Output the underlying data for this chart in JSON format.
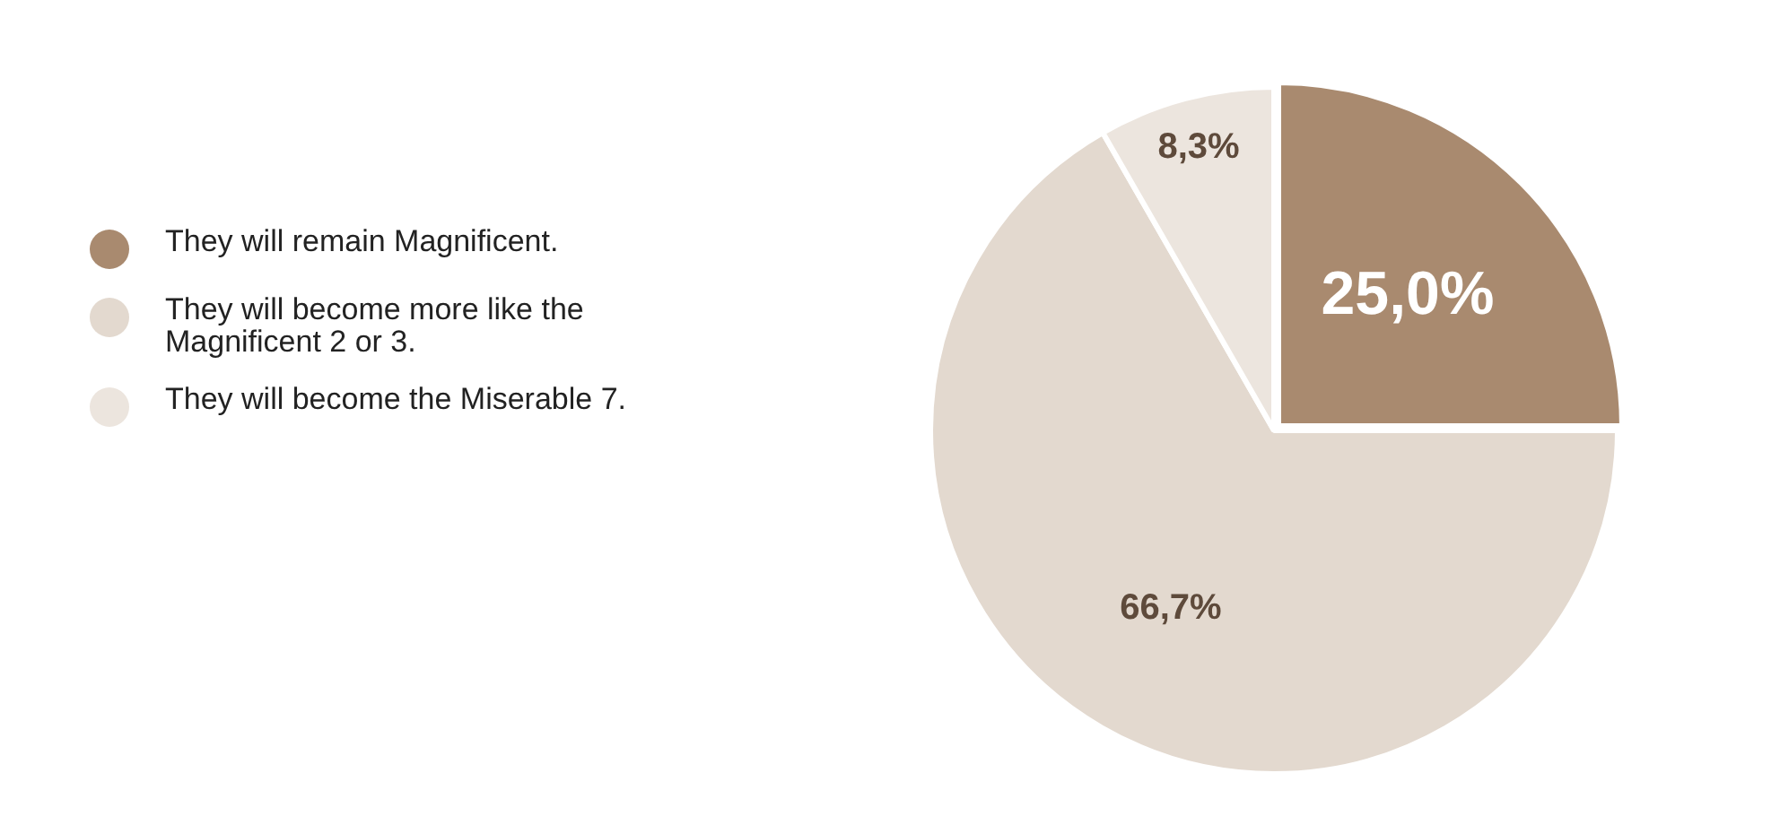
{
  "chart_data": {
    "type": "pie",
    "categories": [
      "They will remain Magnificent.",
      "They will become more like the Magnificent 2 or 3.",
      "They will become the Miserable 7."
    ],
    "values": [
      25.0,
      66.7,
      8.3
    ],
    "colors": [
      "#a98a6f",
      "#e3d9cf",
      "#ece5de"
    ],
    "value_labels": [
      "25,0%",
      "66,7%",
      "8,3%"
    ],
    "legend": "left"
  }
}
